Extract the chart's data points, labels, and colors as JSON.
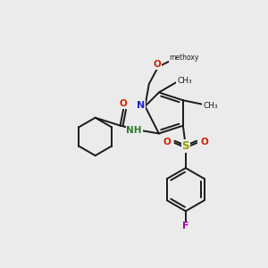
{
  "background_color": "#ebebeb",
  "bond_color": "#1a1a1a",
  "figsize": [
    3.0,
    3.0
  ],
  "dpi": 100,
  "xlim": [
    0,
    10
  ],
  "ylim": [
    0,
    10
  ]
}
